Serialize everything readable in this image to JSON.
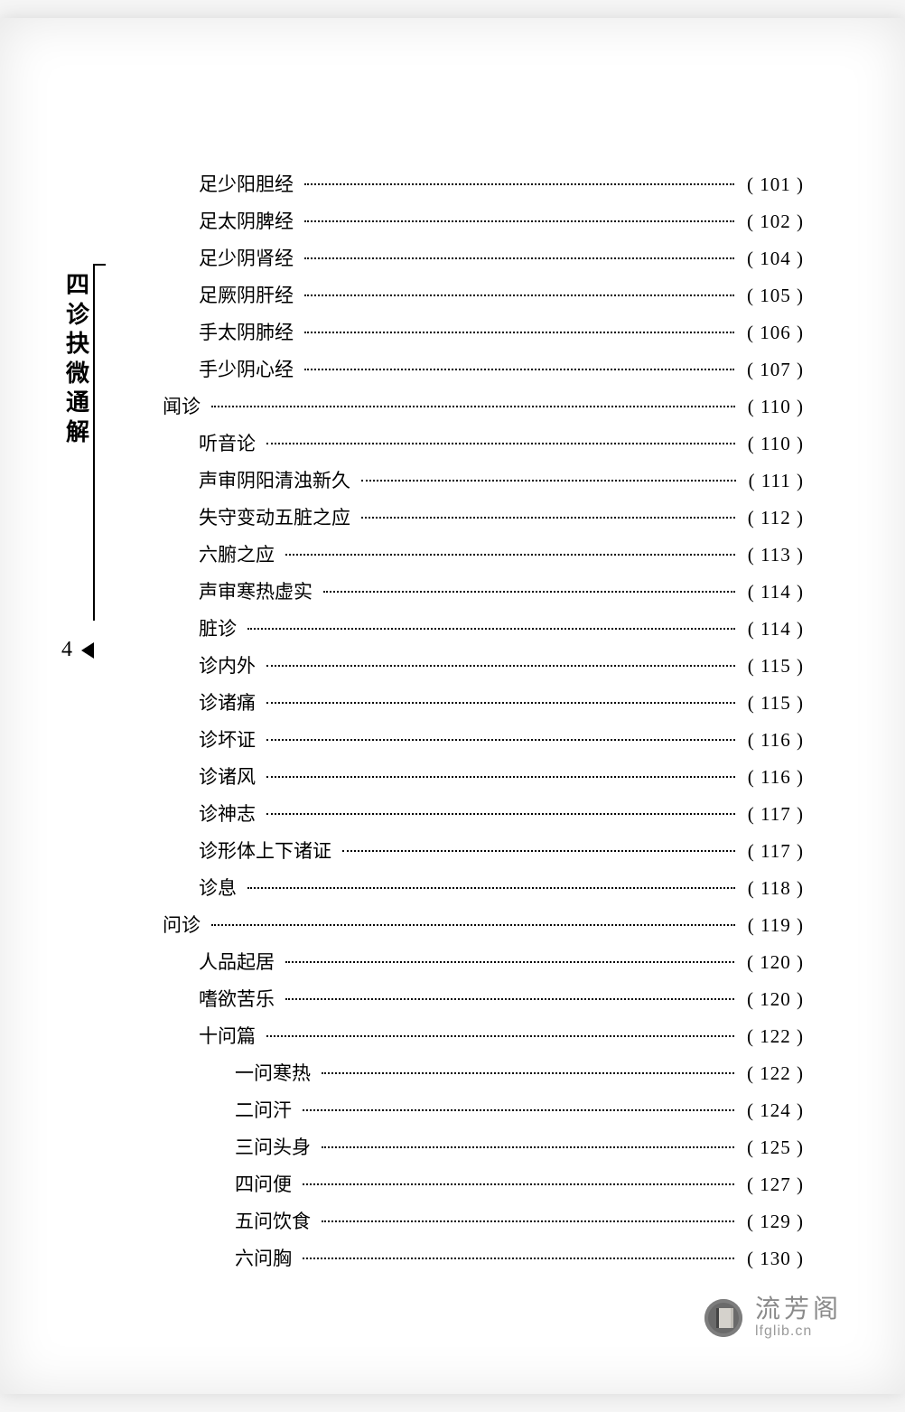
{
  "page_number": "4",
  "side_title": "四诊抉微通解",
  "watermark": {
    "cn": "流芳阁",
    "en": "lfglib.cn"
  },
  "toc": [
    {
      "level": 1,
      "label": "足少阳胆经",
      "page": "( 101 )"
    },
    {
      "level": 1,
      "label": "足太阴脾经",
      "page": "( 102 )"
    },
    {
      "level": 1,
      "label": "足少阴肾经",
      "page": "( 104 )"
    },
    {
      "level": 1,
      "label": "足厥阴肝经",
      "page": "( 105 )"
    },
    {
      "level": 1,
      "label": "手太阴肺经",
      "page": "( 106 )"
    },
    {
      "level": 1,
      "label": "手少阴心经",
      "page": "( 107 )"
    },
    {
      "level": 0,
      "label": "闻诊",
      "page": "( 110 )"
    },
    {
      "level": 1,
      "label": "听音论",
      "page": "( 110 )"
    },
    {
      "level": 1,
      "label": "声审阴阳清浊新久",
      "page": "( 111 )"
    },
    {
      "level": 1,
      "label": "失守变动五脏之应",
      "page": "( 112 )"
    },
    {
      "level": 1,
      "label": "六腑之应",
      "page": "( 113 )"
    },
    {
      "level": 1,
      "label": "声审寒热虚实",
      "page": "( 114 )"
    },
    {
      "level": 1,
      "label": "脏诊",
      "page": "( 114 )"
    },
    {
      "level": 1,
      "label": "诊内外",
      "page": "( 115 )"
    },
    {
      "level": 1,
      "label": "诊诸痛",
      "page": "( 115 )"
    },
    {
      "level": 1,
      "label": "诊坏证",
      "page": "( 116 )"
    },
    {
      "level": 1,
      "label": "诊诸风",
      "page": "( 116 )"
    },
    {
      "level": 1,
      "label": "诊神志",
      "page": "( 117 )"
    },
    {
      "level": 1,
      "label": "诊形体上下诸证",
      "page": "( 117 )"
    },
    {
      "level": 1,
      "label": "诊息",
      "page": "( 118 )"
    },
    {
      "level": 0,
      "label": "问诊",
      "page": "( 119 )"
    },
    {
      "level": 1,
      "label": "人品起居",
      "page": "( 120 )"
    },
    {
      "level": 1,
      "label": "嗜欲苦乐",
      "page": "( 120 )"
    },
    {
      "level": 1,
      "label": "十问篇",
      "page": "( 122 )"
    },
    {
      "level": 2,
      "label": "一问寒热",
      "page": "( 122 )"
    },
    {
      "level": 2,
      "label": "二问汗",
      "page": "( 124 )"
    },
    {
      "level": 2,
      "label": "三问头身",
      "page": "( 125 )"
    },
    {
      "level": 2,
      "label": "四问便",
      "page": "( 127 )"
    },
    {
      "level": 2,
      "label": "五问饮食",
      "page": "( 129 )"
    },
    {
      "level": 2,
      "label": "六问胸",
      "page": "( 130 )"
    }
  ]
}
